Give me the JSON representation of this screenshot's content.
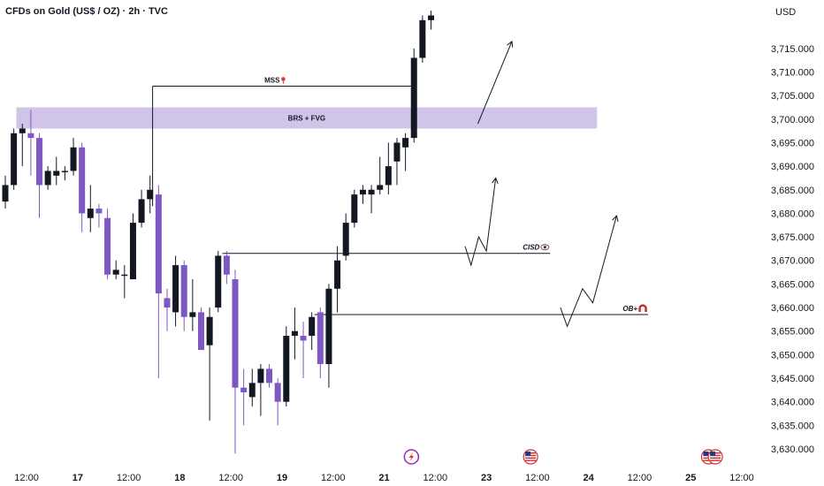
{
  "header": {
    "title": "CFDs on Gold (US$ / OZ) · 2h · TVC"
  },
  "icons": {
    "bolt": "lightning-bolt-icon",
    "flag": "us-flag-icon",
    "pin": "red-pin-icon",
    "eye": "eye-icon",
    "magnet": "magnet-icon"
  },
  "colors": {
    "bull": "#131722",
    "bear": "#7e57c2",
    "zone": "#d1c4e9",
    "accent_red": "#e53935",
    "bolt_ring": "#9c27b0"
  },
  "chart_data": {
    "type": "candlestick",
    "currency": "USD",
    "ylim": [
      3627,
      3722
    ],
    "y_ticks": [
      3630,
      3635,
      3640,
      3645,
      3650,
      3655,
      3660,
      3665,
      3670,
      3675,
      3680,
      3685,
      3690,
      3695,
      3700,
      3705,
      3710,
      3715
    ],
    "y_tick_labels": [
      "3,630.000",
      "3,635.000",
      "3,640.000",
      "3,645.000",
      "3,650.000",
      "3,655.000",
      "3,660.000",
      "3,665.000",
      "3,670.000",
      "3,675.000",
      "3,680.000",
      "3,685.000",
      "3,690.000",
      "3,695.000",
      "3,700.000",
      "3,705.000",
      "3,710.000",
      "3,715.000"
    ],
    "x_labels": [
      {
        "text": "12:00",
        "bar": 2.5,
        "bold": false
      },
      {
        "text": "17",
        "bar": 8.5,
        "bold": true
      },
      {
        "text": "12:00",
        "bar": 14.5,
        "bold": false
      },
      {
        "text": "18",
        "bar": 20.5,
        "bold": true
      },
      {
        "text": "12:00",
        "bar": 26.5,
        "bold": false
      },
      {
        "text": "19",
        "bar": 32.5,
        "bold": true
      },
      {
        "text": "12:00",
        "bar": 38.5,
        "bold": false
      },
      {
        "text": "21",
        "bar": 44.5,
        "bold": true
      },
      {
        "text": "12:00",
        "bar": 50.5,
        "bold": false
      },
      {
        "text": "23",
        "bar": 56.5,
        "bold": true
      },
      {
        "text": "12:00",
        "bar": 62.5,
        "bold": false
      },
      {
        "text": "24",
        "bar": 68.5,
        "bold": true
      },
      {
        "text": "12:00",
        "bar": 74.5,
        "bold": false
      },
      {
        "text": "25",
        "bar": 80.5,
        "bold": true
      },
      {
        "text": "12:00",
        "bar": 86.5,
        "bold": false
      }
    ],
    "candles": [
      {
        "o": 3682.5,
        "h": 3688.0,
        "l": 3681.0,
        "c": 3686.0
      },
      {
        "o": 3686.0,
        "h": 3698.0,
        "l": 3685.0,
        "c": 3697.0
      },
      {
        "o": 3697.0,
        "h": 3699.0,
        "l": 3690.0,
        "c": 3698.0
      },
      {
        "o": 3697.0,
        "h": 3702.0,
        "l": 3688.0,
        "c": 3696.0
      },
      {
        "o": 3696.0,
        "h": 3697.0,
        "l": 3679.0,
        "c": 3686.0
      },
      {
        "o": 3686.0,
        "h": 3690.0,
        "l": 3685.0,
        "c": 3689.0
      },
      {
        "o": 3688.0,
        "h": 3692.0,
        "l": 3686.0,
        "c": 3689.0
      },
      {
        "o": 3689.0,
        "h": 3690.0,
        "l": 3687.0,
        "c": 3689.0
      },
      {
        "o": 3689.0,
        "h": 3696.0,
        "l": 3688.0,
        "c": 3694.0
      },
      {
        "o": 3694.0,
        "h": 3695.0,
        "l": 3676.0,
        "c": 3680.0
      },
      {
        "o": 3679.0,
        "h": 3686.0,
        "l": 3676.0,
        "c": 3681.0
      },
      {
        "o": 3681.0,
        "h": 3682.0,
        "l": 3677.0,
        "c": 3680.0
      },
      {
        "o": 3679.0,
        "h": 3681.0,
        "l": 3666.0,
        "c": 3667.0
      },
      {
        "o": 3667.0,
        "h": 3670.0,
        "l": 3666.0,
        "c": 3668.0
      },
      {
        "o": 3667.0,
        "h": 3669.0,
        "l": 3662.0,
        "c": 3667.0
      },
      {
        "o": 3666.0,
        "h": 3680.0,
        "l": 3666.0,
        "c": 3678.0
      },
      {
        "o": 3678.0,
        "h": 3685.0,
        "l": 3677.0,
        "c": 3683.0
      },
      {
        "o": 3683.0,
        "h": 3688.0,
        "l": 3680.0,
        "c": 3685.0
      },
      {
        "o": 3684.0,
        "h": 3686.0,
        "l": 3645.0,
        "c": 3663.0
      },
      {
        "o": 3662.0,
        "h": 3664.0,
        "l": 3655.0,
        "c": 3660.0
      },
      {
        "o": 3659.0,
        "h": 3671.0,
        "l": 3656.0,
        "c": 3669.0
      },
      {
        "o": 3669.0,
        "h": 3670.0,
        "l": 3655.0,
        "c": 3658.0
      },
      {
        "o": 3658.0,
        "h": 3666.0,
        "l": 3655.0,
        "c": 3659.0
      },
      {
        "o": 3659.0,
        "h": 3660.0,
        "l": 3651.0,
        "c": 3651.0
      },
      {
        "o": 3652.0,
        "h": 3660.0,
        "l": 3636.0,
        "c": 3658.0
      },
      {
        "o": 3660.0,
        "h": 3672.0,
        "l": 3659.0,
        "c": 3671.0
      },
      {
        "o": 3671.0,
        "h": 3672.0,
        "l": 3665.0,
        "c": 3667.0
      },
      {
        "o": 3666.0,
        "h": 3668.0,
        "l": 3629.0,
        "c": 3643.0
      },
      {
        "o": 3643.0,
        "h": 3647.0,
        "l": 3635.0,
        "c": 3642.0
      },
      {
        "o": 3641.0,
        "h": 3647.0,
        "l": 3639.0,
        "c": 3644.0
      },
      {
        "o": 3644.0,
        "h": 3648.0,
        "l": 3637.0,
        "c": 3647.0
      },
      {
        "o": 3647.0,
        "h": 3648.0,
        "l": 3643.0,
        "c": 3644.0
      },
      {
        "o": 3644.0,
        "h": 3645.0,
        "l": 3635.0,
        "c": 3640.0
      },
      {
        "o": 3640.0,
        "h": 3656.0,
        "l": 3639.0,
        "c": 3654.0
      },
      {
        "o": 3654.0,
        "h": 3660.0,
        "l": 3649.0,
        "c": 3655.0
      },
      {
        "o": 3654.0,
        "h": 3657.0,
        "l": 3645.0,
        "c": 3653.0
      },
      {
        "o": 3654.0,
        "h": 3659.0,
        "l": 3651.0,
        "c": 3658.0
      },
      {
        "o": 3659.0,
        "h": 3660.0,
        "l": 3645.0,
        "c": 3648.0
      },
      {
        "o": 3648.0,
        "h": 3665.0,
        "l": 3643.0,
        "c": 3664.0
      },
      {
        "o": 3664.0,
        "h": 3673.0,
        "l": 3659.0,
        "c": 3670.0
      },
      {
        "o": 3671.0,
        "h": 3680.0,
        "l": 3670.0,
        "c": 3678.0
      },
      {
        "o": 3678.0,
        "h": 3685.0,
        "l": 3677.0,
        "c": 3684.0
      },
      {
        "o": 3684.0,
        "h": 3686.0,
        "l": 3682.0,
        "c": 3685.0
      },
      {
        "o": 3684.0,
        "h": 3686.0,
        "l": 3680.0,
        "c": 3685.0
      },
      {
        "o": 3685.0,
        "h": 3692.0,
        "l": 3684.0,
        "c": 3686.0
      },
      {
        "o": 3686.0,
        "h": 3695.0,
        "l": 3684.0,
        "c": 3690.0
      },
      {
        "o": 3691.0,
        "h": 3696.0,
        "l": 3686.0,
        "c": 3695.0
      },
      {
        "o": 3694.0,
        "h": 3697.0,
        "l": 3689.0,
        "c": 3696.0
      },
      {
        "o": 3696.0,
        "h": 3715.0,
        "l": 3695.0,
        "c": 3713.0
      },
      {
        "o": 3713.0,
        "h": 3722.0,
        "l": 3712.0,
        "c": 3721.0
      },
      {
        "o": 3721.0,
        "h": 3723.0,
        "l": 3719.0,
        "c": 3722.0
      }
    ],
    "zones": [
      {
        "label": "BRS + FVG",
        "from_bar": 1.3,
        "to_bar": 69.5,
        "y_low": 3698.0,
        "y_high": 3702.5
      }
    ],
    "levels": [
      {
        "label": "MSS",
        "icon": "pin",
        "y": 3707.0,
        "from_bar": 17.3,
        "to_bar": 48.0
      },
      {
        "label": "CISD",
        "icon": "eye",
        "y": 3671.5,
        "from_bar": 25.5,
        "to_bar": 64.0
      },
      {
        "label": "OB+",
        "icon": "magnet",
        "y": 3658.5,
        "from_bar": 36.3,
        "to_bar": 75.5
      }
    ],
    "projections": [
      {
        "from_bar": 55.5,
        "points": [
          [
            55.5,
            3699.0
          ],
          [
            59.5,
            3716.5
          ]
        ]
      },
      {
        "from_bar": 54.0,
        "points": [
          [
            54.0,
            3673.0
          ],
          [
            54.7,
            3669.0
          ],
          [
            55.6,
            3675.0
          ],
          [
            56.5,
            3672.0
          ],
          [
            57.6,
            3687.5
          ]
        ]
      },
      {
        "from_bar": 65.2,
        "points": [
          [
            65.2,
            3660.0
          ],
          [
            66.0,
            3656.0
          ],
          [
            67.8,
            3664.0
          ],
          [
            69.0,
            3661.0
          ],
          [
            71.8,
            3679.5
          ]
        ]
      }
    ],
    "events": [
      {
        "icon": "bolt",
        "bar": 47.7
      },
      {
        "icon": "flag",
        "bar": 61.7
      },
      {
        "icon": "flag",
        "bar": 82.6
      },
      {
        "icon": "flag",
        "bar": 83.4
      }
    ]
  }
}
